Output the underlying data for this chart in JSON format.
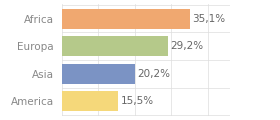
{
  "categories": [
    "Africa",
    "Europa",
    "Asia",
    "America"
  ],
  "values": [
    35.1,
    29.2,
    20.2,
    15.5
  ],
  "labels": [
    "35,1%",
    "29,2%",
    "20,2%",
    "15,5%"
  ],
  "bar_colors": [
    "#f0a870",
    "#b5c98a",
    "#7b93c4",
    "#f5d87a"
  ],
  "background_color": "#ffffff",
  "xlim": [
    0,
    46
  ],
  "bar_height": 0.72,
  "label_fontsize": 7.5,
  "ylabel_fontsize": 7.5,
  "ylabel_color": "#888888",
  "label_color": "#666666"
}
